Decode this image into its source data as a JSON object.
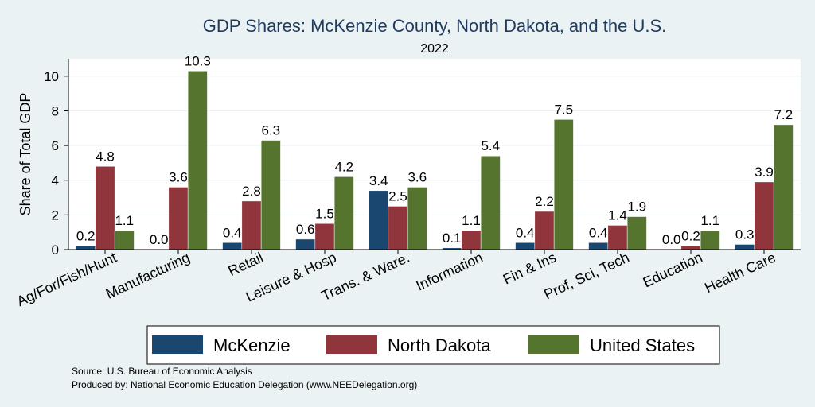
{
  "chart_data": {
    "type": "bar",
    "title": "GDP Shares: McKenzie County, North Dakota, and the U.S.",
    "subtitle": "2022",
    "ylabel": "Share of Total GDP",
    "xlabel": "",
    "ylim": [
      0,
      11
    ],
    "yticks": [
      0,
      2,
      4,
      6,
      8,
      10
    ],
    "grid": true,
    "legend_position": "bottom",
    "categories": [
      "Ag/For/Fish/Hunt",
      "Manufacturing",
      "Retail",
      "Leisure & Hosp",
      "Trans. & Ware.",
      "Information",
      "Fin & Ins",
      "Prof, Sci, Tech",
      "Education",
      "Health Care"
    ],
    "series": [
      {
        "name": "McKenzie",
        "color": "#1a476f",
        "values": [
          0.2,
          0.0,
          0.4,
          0.6,
          3.4,
          0.1,
          0.4,
          0.4,
          0.0,
          0.3
        ],
        "labels": [
          "0.2",
          "0.0",
          "0.4",
          "0.6",
          "3.4",
          "0.1",
          "0.4",
          "0.4",
          "0.0",
          "0.3"
        ]
      },
      {
        "name": "North Dakota",
        "color": "#90353b",
        "values": [
          4.8,
          3.6,
          2.8,
          1.5,
          2.5,
          1.1,
          2.2,
          1.4,
          0.2,
          3.9
        ],
        "labels": [
          "4.8",
          "3.6",
          "2.8",
          "1.5",
          "2.5",
          "1.1",
          "2.2",
          "1.4",
          "0.2",
          "3.9"
        ]
      },
      {
        "name": "United States",
        "color": "#55752f",
        "values": [
          1.1,
          10.3,
          6.3,
          4.2,
          3.6,
          5.4,
          7.5,
          1.9,
          1.1,
          7.2
        ],
        "labels": [
          "1.1",
          "10.3",
          "6.3",
          "4.2",
          "3.6",
          "5.4",
          "7.5",
          "1.9",
          "1.1",
          "7.2"
        ]
      }
    ]
  },
  "notes": {
    "source": "Source: U.S. Bureau of Economic Analysis",
    "produced_by": "Produced by: National Economic Education Delegation (www.NEEDelegation.org)"
  }
}
